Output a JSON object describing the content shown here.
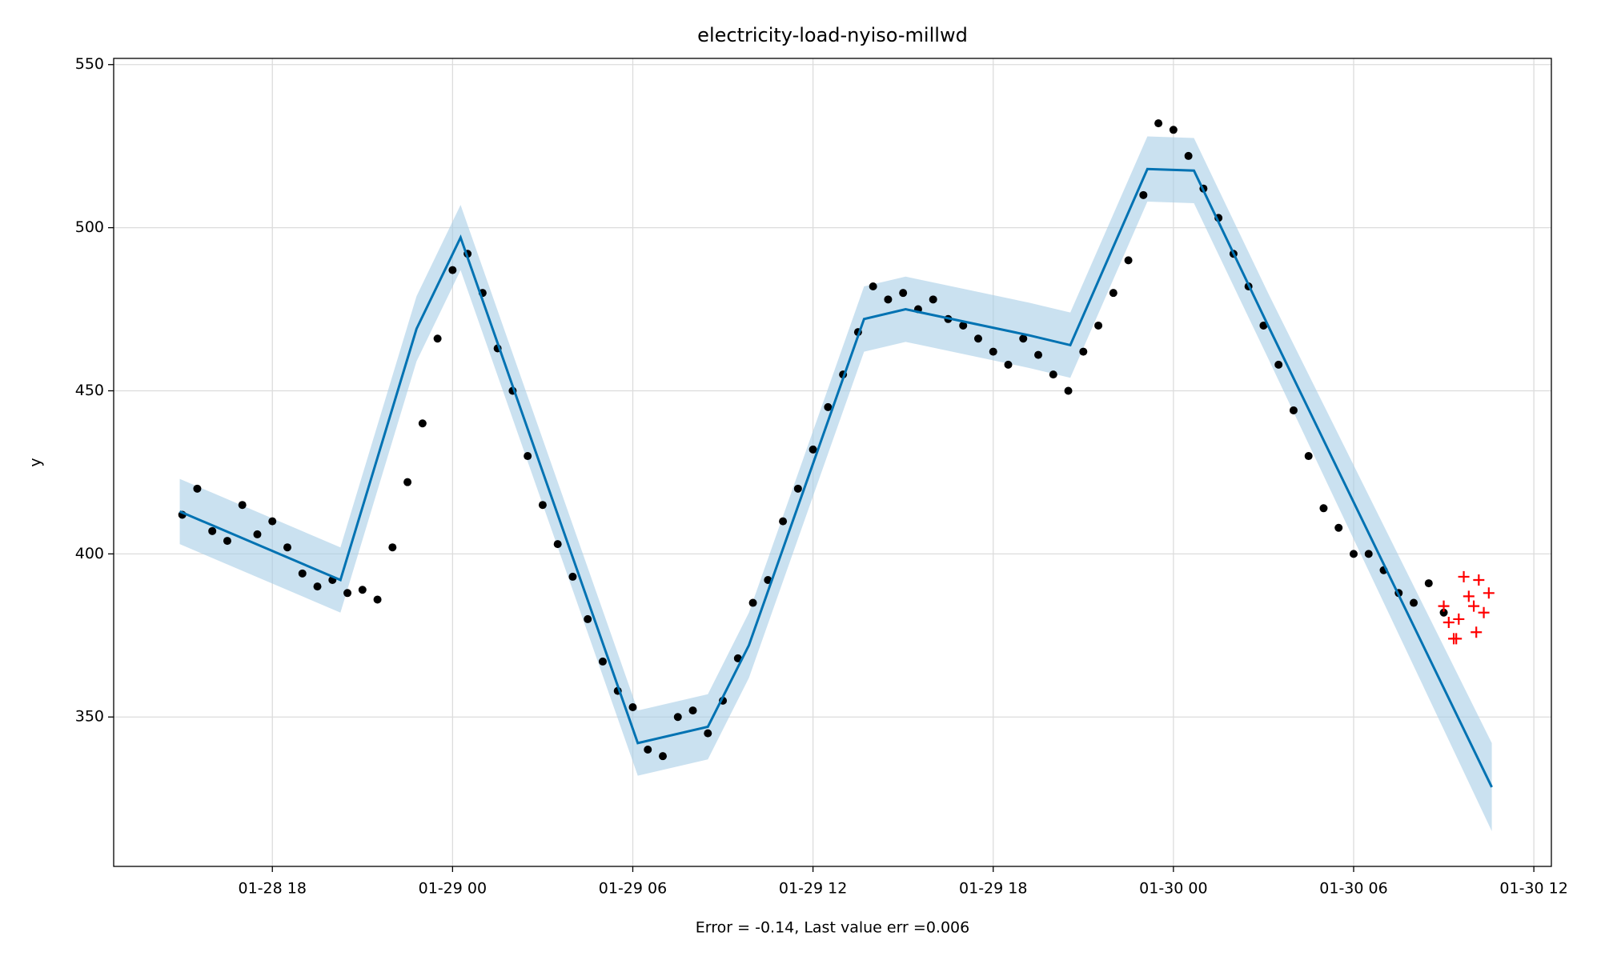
{
  "chart_data": {
    "type": "scatter",
    "title": "electricity-load-nyiso-millwd",
    "xlabel": "Error = -0.14, Last value err =0.006",
    "ylabel": "y",
    "color": "#000000",
    "x": [
      "01-28 15:00",
      "01-28 15:30",
      "01-28 16:00",
      "01-28 16:30",
      "01-28 17:00",
      "01-28 17:30",
      "01-28 18:00",
      "01-28 18:30",
      "01-28 19:00",
      "01-28 19:30",
      "01-28 20:00",
      "01-28 20:30",
      "01-28 21:00",
      "01-28 21:30",
      "01-28 22:00",
      "01-28 22:30",
      "01-28 23:00",
      "01-28 23:30",
      "01-29 00:00",
      "01-29 00:30",
      "01-29 01:00",
      "01-29 01:30",
      "01-29 02:00",
      "01-29 02:30",
      "01-29 03:00",
      "01-29 03:30",
      "01-29 04:00",
      "01-29 04:30",
      "01-29 05:00",
      "01-29 05:30",
      "01-29 06:00",
      "01-29 06:30",
      "01-29 07:00",
      "01-29 07:30",
      "01-29 08:00",
      "01-29 08:30",
      "01-29 09:00",
      "01-29 09:30",
      "01-29 10:00",
      "01-29 10:30",
      "01-29 11:00",
      "01-29 11:30",
      "01-29 12:00",
      "01-29 12:30",
      "01-29 13:00",
      "01-29 13:30",
      "01-29 14:00",
      "01-29 14:30",
      "01-29 15:00",
      "01-29 15:30",
      "01-29 16:00",
      "01-29 16:30",
      "01-29 17:00",
      "01-29 17:30",
      "01-29 18:00",
      "01-29 18:30",
      "01-29 19:00",
      "01-29 19:30",
      "01-29 20:00",
      "01-29 20:30",
      "01-29 21:00",
      "01-29 21:30",
      "01-29 22:00",
      "01-29 22:30",
      "01-29 23:00",
      "01-29 23:30",
      "01-30 00:00",
      "01-30 00:30",
      "01-30 01:00",
      "01-30 01:30",
      "01-30 02:00",
      "01-30 02:30",
      "01-30 03:00",
      "01-30 03:30",
      "01-30 04:00",
      "01-30 04:30",
      "01-30 05:00",
      "01-30 05:30",
      "01-30 06:00",
      "01-30 06:30",
      "01-30 07:00",
      "01-30 07:30",
      "01-30 08:00",
      "01-30 08:30",
      "01-30 09:00"
    ],
    "values": [
      412,
      420,
      407,
      404,
      415,
      406,
      410,
      402,
      394,
      390,
      392,
      388,
      389,
      386,
      402,
      422,
      440,
      466,
      487,
      492,
      480,
      463,
      450,
      430,
      415,
      403,
      393,
      380,
      367,
      358,
      353,
      340,
      338,
      350,
      352,
      345,
      355,
      368,
      385,
      392,
      410,
      420,
      432,
      445,
      455,
      468,
      482,
      478,
      480,
      475,
      478,
      472,
      470,
      466,
      462,
      458,
      466,
      461,
      455,
      450,
      462,
      470,
      480,
      490,
      510,
      532,
      530,
      522,
      512,
      503,
      492,
      482,
      470,
      458,
      444,
      430,
      414,
      408,
      400,
      400,
      395,
      388,
      385,
      391,
      382
    ],
    "forecast": {
      "color": "#0072b2",
      "band_color": "#a6cde6",
      "x": [
        "01-28 14:55",
        "01-28 20:16",
        "01-28 22:48",
        "01-29 00:16",
        "01-29 06:10",
        "01-29 08:30",
        "01-29 09:52",
        "01-29 13:42",
        "01-29 15:05",
        "01-29 19:12",
        "01-29 20:34",
        "01-29 23:08",
        "01-30 00:41",
        "01-30 03:09",
        "01-30 10:36"
      ],
      "values": [
        413,
        392,
        469,
        497,
        342,
        347,
        372,
        472,
        475,
        467,
        464,
        518,
        517.5,
        470,
        328.5
      ],
      "lower": [
        403,
        382,
        459,
        487,
        332,
        337,
        362,
        462,
        465,
        457,
        454,
        508,
        507.5,
        460,
        315
      ],
      "upper": [
        423,
        402,
        479,
        507,
        352,
        357,
        382,
        482,
        485,
        477,
        474,
        528,
        527.5,
        480,
        342
      ]
    },
    "test": {
      "color": "#ff0000",
      "x": [
        "01-30 09:00",
        "01-30 09:10",
        "01-30 09:20",
        "01-30 09:30",
        "01-30 09:40",
        "01-30 09:50",
        "01-30 10:00",
        "01-30 10:10",
        "01-30 10:20",
        "01-30 10:30",
        "01-30 09:25",
        "01-30 10:05"
      ],
      "values": [
        384,
        379,
        374,
        380,
        393,
        387,
        384,
        392,
        382,
        388,
        374,
        376
      ]
    },
    "xlim": [
      "01-28 12:43",
      "01-30 12:35"
    ],
    "ylim": [
      304.2,
      551.9
    ],
    "xticks": [
      "01-28 18",
      "01-29 00",
      "01-29 06",
      "01-29 12",
      "01-29 18",
      "01-30 00",
      "01-30 06",
      "01-30 12"
    ],
    "yticks": [
      350,
      400,
      450,
      500,
      550
    ],
    "grid": true
  }
}
